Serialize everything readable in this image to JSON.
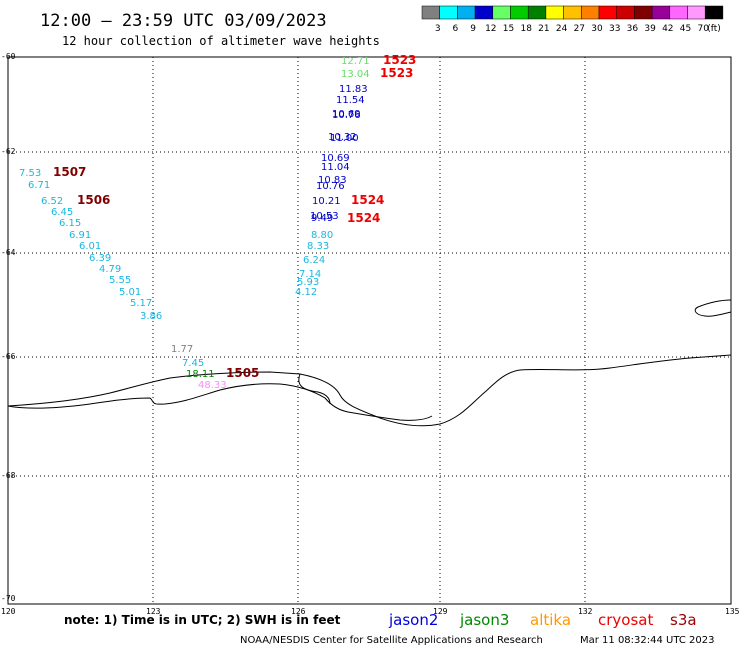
{
  "header": {
    "title": "12:00 — 23:59 UTC 03/09/2023",
    "subtitle": "12 hour collection of altimeter wave heights"
  },
  "legend": {
    "labels": [
      "3",
      "6",
      "9",
      "12",
      "15",
      "18",
      "21",
      "24",
      "27",
      "30",
      "33",
      "36",
      "39",
      "42",
      "45",
      "70",
      "(ft)"
    ],
    "colors": [
      "#808080",
      "#00ffff",
      "#00b0f0",
      "#0000cc",
      "#66ff66",
      "#00cc00",
      "#008000",
      "#ffff00",
      "#ffc000",
      "#ff8000",
      "#ff0000",
      "#cc0000",
      "#800000",
      "#990099",
      "#ff66ff",
      "#ff99ff",
      "#000000"
    ]
  },
  "axes": {
    "lat_labels": [
      "-60",
      "-62",
      "-64",
      "-66",
      "-68",
      "-70"
    ],
    "lon_labels": [
      "120",
      "123",
      "126",
      "129",
      "132",
      "135"
    ]
  },
  "colors": {
    "lightgreen": "#66dd66",
    "navy": "#0000cc",
    "cyan": "#1ab8e0",
    "gray": "#808080",
    "green": "#008000",
    "pink": "#ff88ff",
    "red": "#ee0000",
    "maroon": "#800000"
  },
  "track_right": [
    {
      "v": "12.71",
      "c": "lightgreen"
    },
    {
      "v": "13.04",
      "c": "lightgreen"
    },
    {
      "v": "11.83",
      "c": "navy"
    },
    {
      "v": "11.54",
      "c": "navy"
    },
    {
      "v": "10.76",
      "c": "navy"
    },
    {
      "v": "10.69",
      "c": "navy"
    },
    {
      "v": "11.00",
      "c": "navy"
    },
    {
      "v": "10.32",
      "c": "navy"
    },
    {
      "v": "10.69",
      "c": "navy"
    },
    {
      "v": "11.04",
      "c": "navy"
    },
    {
      "v": "10.83",
      "c": "navy"
    },
    {
      "v": "10.76",
      "c": "navy"
    },
    {
      "v": "10.21",
      "c": "navy"
    },
    {
      "v": "10.53",
      "c": "navy"
    },
    {
      "v": "9.49",
      "c": "navy"
    },
    {
      "v": "8.80",
      "c": "cyan"
    },
    {
      "v": "8.33",
      "c": "cyan"
    },
    {
      "v": "6.24",
      "c": "cyan"
    },
    {
      "v": "7.14",
      "c": "cyan"
    },
    {
      "v": "5.93",
      "c": "cyan"
    },
    {
      "v": "4.12",
      "c": "cyan"
    }
  ],
  "track_left": [
    {
      "v": "7.53",
      "c": "cyan"
    },
    {
      "v": "6.71",
      "c": "cyan"
    },
    {
      "v": "6.52",
      "c": "cyan"
    },
    {
      "v": "6.45",
      "c": "cyan"
    },
    {
      "v": "6.15",
      "c": "cyan"
    },
    {
      "v": "6.91",
      "c": "cyan"
    },
    {
      "v": "6.01",
      "c": "cyan"
    },
    {
      "v": "6.39",
      "c": "cyan"
    },
    {
      "v": "4.79",
      "c": "cyan"
    },
    {
      "v": "5.55",
      "c": "cyan"
    },
    {
      "v": "5.01",
      "c": "cyan"
    },
    {
      "v": "5.17",
      "c": "cyan"
    },
    {
      "v": "3.86",
      "c": "cyan"
    }
  ],
  "track_bottom": [
    {
      "v": "1.77",
      "c": "gray"
    },
    {
      "v": "7.45",
      "c": "cyan"
    },
    {
      "v": "18.11",
      "c": "green"
    },
    {
      "v": "48.33",
      "c": "pink"
    }
  ],
  "times": [
    {
      "v": "1523",
      "c": "red"
    },
    {
      "v": "1523",
      "c": "red"
    },
    {
      "v": "1507",
      "c": "maroon"
    },
    {
      "v": "1506",
      "c": "maroon"
    },
    {
      "v": "1524",
      "c": "red"
    },
    {
      "v": "1524",
      "c": "red"
    },
    {
      "v": "1505",
      "c": "maroon"
    }
  ],
  "footer": {
    "note": "note: 1) Time is in UTC; 2) SWH is in feet",
    "satellites": [
      {
        "name": "jason2",
        "color": "#0000dd"
      },
      {
        "name": "jason3",
        "color": "#008800"
      },
      {
        "name": "altika",
        "color": "#ff9900"
      },
      {
        "name": "cryosat",
        "color": "#ee0000"
      },
      {
        "name": "s3a",
        "color": "#990000"
      }
    ],
    "credit": "NOAA/NESDIS Center for Satellite Applications and Research",
    "timestamp": "Mar 11 08:32:44 UTC 2023"
  }
}
